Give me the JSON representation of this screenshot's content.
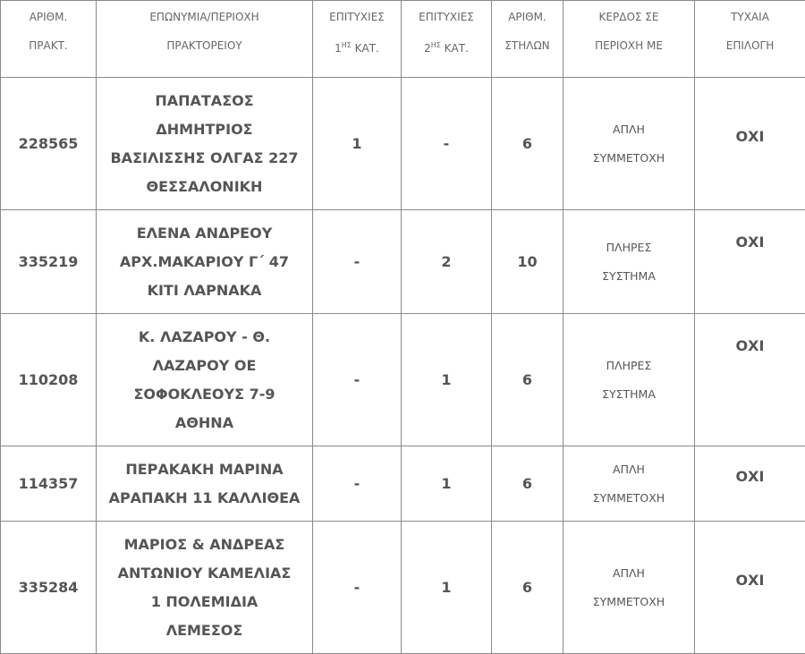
{
  "headers": {
    "code": [
      "ΑΡΙΘΜ.",
      "ΠΡΑΚΤ."
    ],
    "name": [
      "ΕΠΩΝΥΜΙΑ/ΠΕΡΙΟΧΗ",
      "ΠΡΑΚΤΟΡΕΙΟΥ"
    ],
    "cat1": {
      "line1": "ΕΠΙΤΥΧΙΕΣ",
      "num": "1",
      "sup": "ΗΣ",
      "rest": " ΚΑΤ."
    },
    "cat2": {
      "line1": "ΕΠΙΤΥΧΙΕΣ",
      "num": "2",
      "sup": "ΗΣ",
      "rest": " ΚΑΤ."
    },
    "columns": [
      "ΑΡΙΘΜ.",
      "ΣΤΗΛΩΝ"
    ],
    "prize": [
      "ΚΕΡΔΟΣ ΣΕ",
      "ΠΕΡΙΟΧΗ ΜΕ"
    ],
    "random": [
      "ΤΥΧΑΙΑ",
      "ΕΠΙΛΟΓΗ"
    ]
  },
  "rows": [
    {
      "code": "228565",
      "name": [
        "ΠΑΠΑΤΑΣΟΣ",
        "ΔΗΜΗΤΡΙΟΣ",
        "ΒΑΣΙΛΙΣΣΗΣ ΟΛΓΑΣ 227",
        "ΘΕΣΣΑΛΟΝΙΚΗ"
      ],
      "cat1": "1",
      "cat2": "-",
      "columns": "6",
      "prize": [
        "ΑΠΛΗ",
        "ΣΥΜΜΕΤΟΧΗ"
      ],
      "random": "ΟΧΙ"
    },
    {
      "code": "335219",
      "name": [
        "ΕΛΕΝΑ ΑΝΔΡΕΟΥ",
        "ΑΡΧ.ΜΑΚΑΡΙΟΥ Γ΄ 47",
        "ΚΙΤΙ  ΛΑΡΝΑΚΑ"
      ],
      "cat1": "-",
      "cat2": "2",
      "columns": "10",
      "prize": [
        "ΠΛΗΡΕΣ",
        "ΣΥΣΤΗΜΑ"
      ],
      "random": "ΟΧΙ"
    },
    {
      "code": "110208",
      "name": [
        "Κ. ΛΑΖΑΡΟΥ - Θ.",
        "ΛΑΖΑΡΟΥ ΟΕ",
        "ΣΟΦΟΚΛΕΟΥΣ 7-9",
        "ΑΘΗΝΑ"
      ],
      "cat1": "-",
      "cat2": "1",
      "columns": "6",
      "prize": [
        "ΠΛΗΡΕΣ",
        "ΣΥΣΤΗΜΑ"
      ],
      "random": "ΟΧΙ"
    },
    {
      "code": "114357",
      "name": [
        "ΠΕΡΑΚΑΚΗ ΜΑΡΙΝΑ",
        "ΑΡΑΠΑΚΗ 11  ΚΑΛΛΙΘΕΑ"
      ],
      "cat1": "-",
      "cat2": "1",
      "columns": "6",
      "prize": [
        "ΑΠΛΗ",
        "ΣΥΜΜΕΤΟΧΗ"
      ],
      "random": "ΟΧΙ"
    },
    {
      "code": "335284",
      "name": [
        "ΜΑΡΙΟΣ & ΑΝΔΡΕΑΣ",
        "ΑΝΤΩΝΙΟΥ  ΚΑΜΕΛΙΑΣ",
        "1  ΠΟΛΕΜΙΔΙΑ",
        "ΛΕΜΕΣΟΣ"
      ],
      "cat1": "-",
      "cat2": "1",
      "columns": "6",
      "prize": [
        "ΑΠΛΗ",
        "ΣΥΜΜΕΤΟΧΗ"
      ],
      "random": "ΟΧΙ"
    }
  ]
}
